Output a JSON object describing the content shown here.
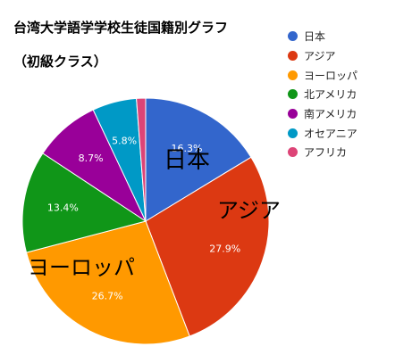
{
  "chart_data": {
    "type": "pie",
    "title": "台湾大学語学学校生徒国籍別グラフ",
    "subtitle": "（初級クラス）",
    "legend_position": "right",
    "categories": [
      "日本",
      "アジア",
      "ヨーロッパ",
      "北アメリカ",
      "南アメリカ",
      "オセアニア",
      "アフリカ"
    ],
    "values": [
      16.3,
      27.9,
      26.7,
      13.4,
      8.7,
      5.8,
      1.2
    ],
    "value_labels": [
      "16.3%",
      "27.9%",
      "26.7%",
      "13.4%",
      "8.7%",
      "5.8%",
      ""
    ],
    "colors": [
      "#3366cc",
      "#dc3912",
      "#ff9900",
      "#109618",
      "#990099",
      "#0099c6",
      "#dd4477"
    ],
    "annotations": [
      {
        "text": "日本",
        "category": "日本"
      },
      {
        "text": "アジア",
        "category": "アジア"
      },
      {
        "text": "ヨーロッパ",
        "category": "ヨーロッパ"
      }
    ]
  }
}
